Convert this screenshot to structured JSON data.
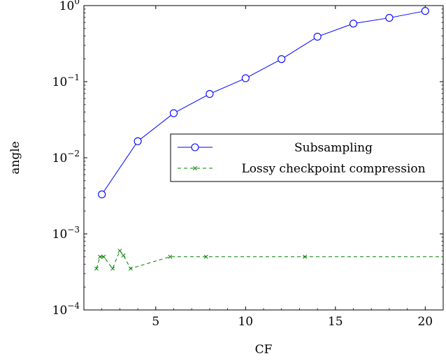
{
  "chart_data": {
    "type": "line",
    "xlabel": "CF",
    "ylabel": "angle",
    "xlim": [
      1,
      21
    ],
    "ylim": [
      0.0001,
      1
    ],
    "yscale": "log",
    "x_ticks": [
      5,
      10,
      15,
      20
    ],
    "x_tick_labels": [
      "5",
      "10",
      "15",
      "20"
    ],
    "y_ticks": [
      0.0001,
      0.001,
      0.01,
      0.1,
      1
    ],
    "y_tick_labels": [
      {
        "base": "10",
        "exp": "−4"
      },
      {
        "base": "10",
        "exp": "−3"
      },
      {
        "base": "10",
        "exp": "−2"
      },
      {
        "base": "10",
        "exp": "−1"
      },
      {
        "base": "10",
        "exp": "0"
      }
    ],
    "grid": false,
    "legend_position": "center-right",
    "series": [
      {
        "name": "Subsampling",
        "color": "#0000ff",
        "line_style": "solid",
        "marker": "circle",
        "x": [
          2,
          4,
          6,
          8,
          10,
          12,
          14,
          16,
          18,
          20
        ],
        "y": [
          0.0033,
          0.0165,
          0.0385,
          0.069,
          0.111,
          0.198,
          0.39,
          0.58,
          0.69,
          0.85
        ]
      },
      {
        "name": "Lossy checkpoint compression",
        "color": "#008000",
        "line_style": "dashed",
        "marker": "x",
        "x": [
          1.7,
          1.9,
          2.1,
          2.6,
          3.0,
          3.2,
          3.6,
          5.8,
          7.8,
          13.3,
          21
        ],
        "y": [
          0.00035,
          0.0005,
          0.0005,
          0.00035,
          0.0006,
          0.00052,
          0.00035,
          0.0005,
          0.0005,
          0.0005,
          0.0005
        ]
      }
    ]
  }
}
